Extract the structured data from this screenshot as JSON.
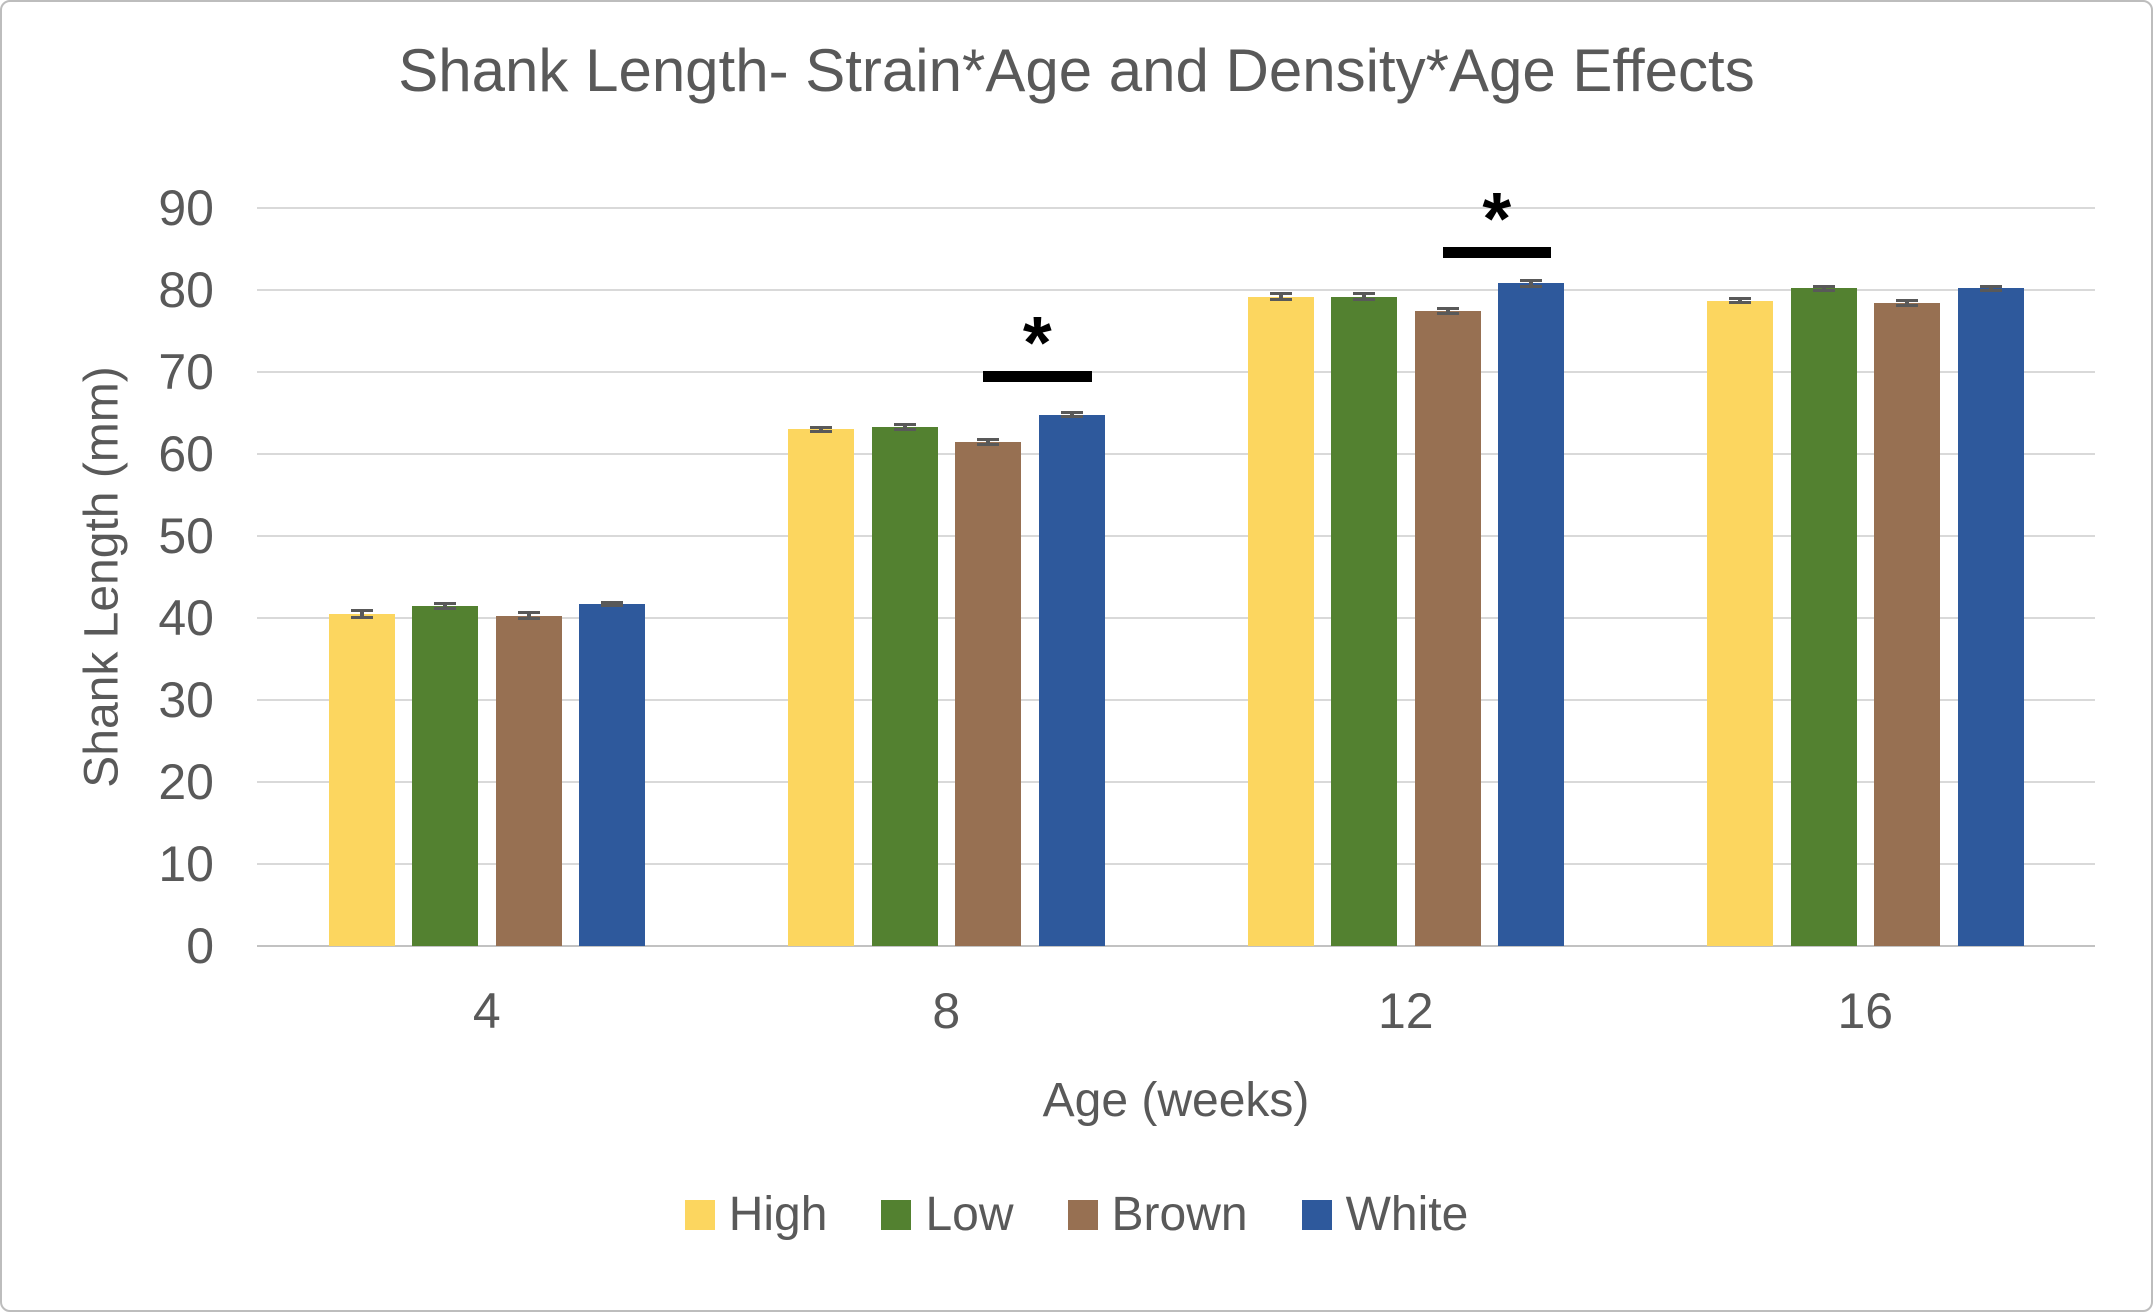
{
  "chart_data": {
    "type": "bar",
    "title": "Shank Length- Strain*Age and Density*Age Effects",
    "xlabel": "Age (weeks)",
    "ylabel": "Shank Length (mm)",
    "ylim": [
      0,
      90
    ],
    "yticks": [
      0,
      10,
      20,
      30,
      40,
      50,
      60,
      70,
      80,
      90
    ],
    "categories": [
      "4",
      "8",
      "12",
      "16"
    ],
    "series": [
      {
        "name": "High",
        "color": "#FCD65F",
        "values": [
          40.5,
          63.0,
          79.2,
          78.7
        ],
        "errors": [
          0.6,
          0.4,
          0.5,
          0.4
        ]
      },
      {
        "name": "Low",
        "color": "#538130",
        "values": [
          41.5,
          63.3,
          79.2,
          80.2
        ],
        "errors": [
          0.5,
          0.5,
          0.5,
          0.4
        ]
      },
      {
        "name": "Brown",
        "color": "#977052",
        "values": [
          40.3,
          61.5,
          77.4,
          78.4
        ],
        "errors": [
          0.5,
          0.5,
          0.5,
          0.5
        ]
      },
      {
        "name": "White",
        "color": "#2E599C",
        "values": [
          41.7,
          64.8,
          80.8,
          80.2
        ],
        "errors": [
          0.4,
          0.4,
          0.5,
          0.4
        ]
      }
    ],
    "error_bars": true,
    "grid": true,
    "legend_position": "bottom",
    "significance_markers": [
      {
        "category": "8",
        "between": [
          "Brown",
          "White"
        ],
        "bar_value": 68.8,
        "symbol": "*"
      },
      {
        "category": "12",
        "between": [
          "Brown",
          "White"
        ],
        "bar_value": 83.9,
        "symbol": "*"
      }
    ]
  },
  "colors": {
    "text": "#595959",
    "gridline": "#D9D9D9",
    "axis_line": "#C2C2C2",
    "chart_border": "#BDBDBD",
    "significance": "#000000",
    "background": "#FFFFFF"
  }
}
